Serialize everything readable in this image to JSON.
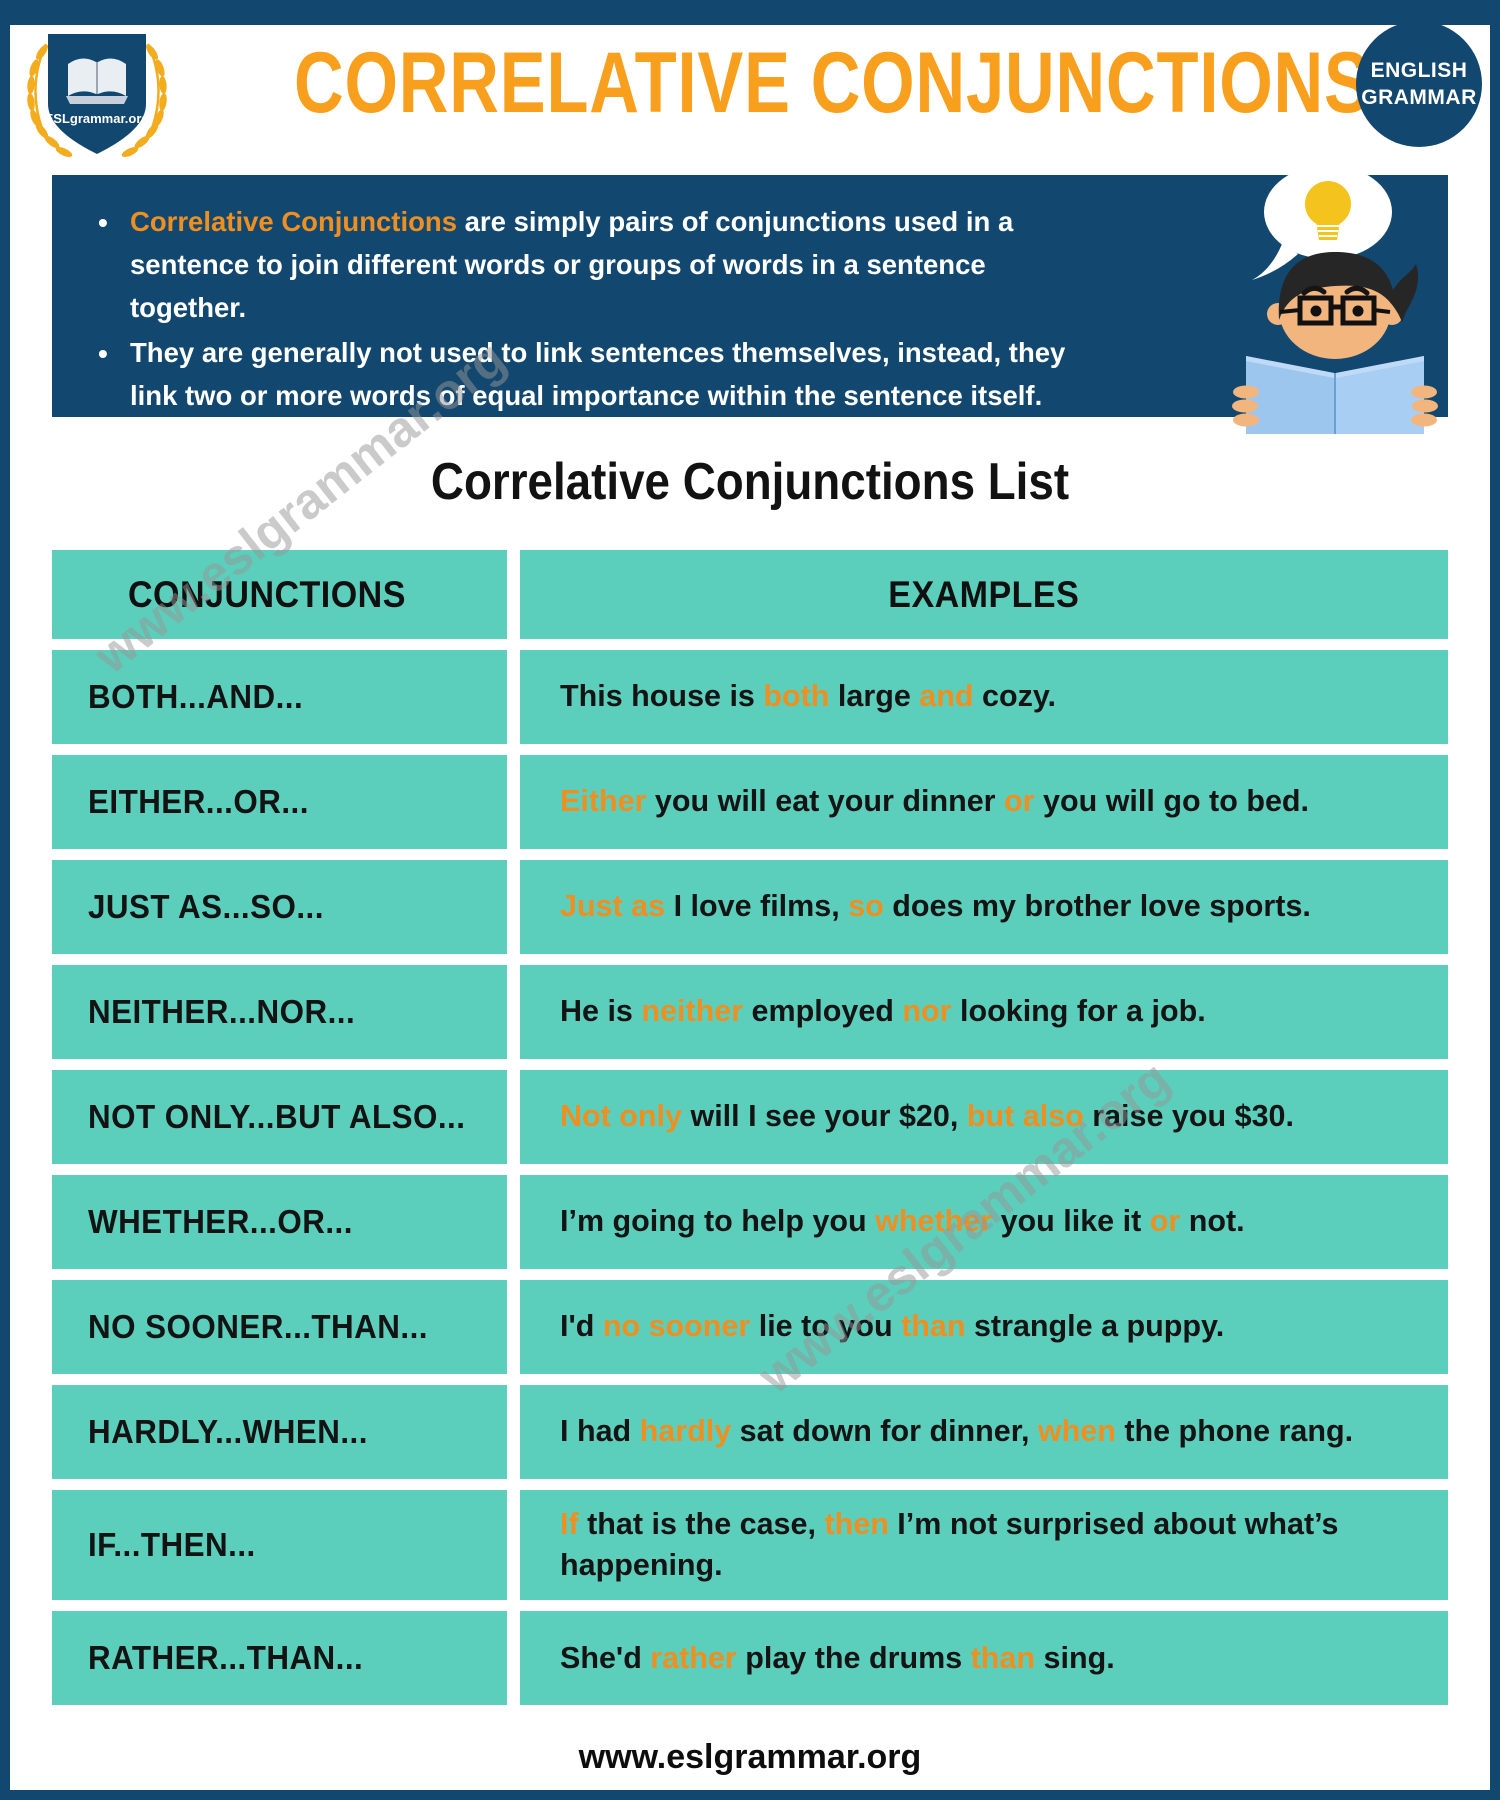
{
  "brand": {
    "logo_text": "ESLgrammar.org",
    "badge": [
      "ENGLISH",
      "GRAMMAR"
    ]
  },
  "header": {
    "title": "CORRELATIVE CONJUNCTIONS"
  },
  "intro": {
    "bullets": [
      {
        "segments": [
          {
            "t": "Correlative Conjunctions",
            "h": true
          },
          {
            "t": " are simply pairs of conjunctions used in a sentence to join different words or groups of words in a sentence together.",
            "h": false
          }
        ]
      },
      {
        "segments": [
          {
            "t": "They are generally not used to link sentences themselves, instead, they link two or more words of equal importance within the sentence itself.",
            "h": false
          }
        ]
      }
    ]
  },
  "list_title": "Correlative Conjunctions List",
  "table": {
    "headers": [
      "CONJUNCTIONS",
      "EXAMPLES"
    ],
    "rows": [
      {
        "conjunction": "BOTH...AND...",
        "example": [
          {
            "t": "This house is ",
            "h": false
          },
          {
            "t": "both",
            "h": true
          },
          {
            "t": " large ",
            "h": false
          },
          {
            "t": "and",
            "h": true
          },
          {
            "t": " cozy.",
            "h": false
          }
        ]
      },
      {
        "conjunction": "EITHER...OR...",
        "example": [
          {
            "t": "Either",
            "h": true
          },
          {
            "t": " you will eat your dinner ",
            "h": false
          },
          {
            "t": "or",
            "h": true
          },
          {
            "t": " you will go to bed.",
            "h": false
          }
        ]
      },
      {
        "conjunction": "JUST AS...SO...",
        "example": [
          {
            "t": "Just as",
            "h": true
          },
          {
            "t": " I love films, ",
            "h": false
          },
          {
            "t": "so",
            "h": true
          },
          {
            "t": " does my brother love sports.",
            "h": false
          }
        ]
      },
      {
        "conjunction": "NEITHER...NOR...",
        "example": [
          {
            "t": "He is ",
            "h": false
          },
          {
            "t": "neither",
            "h": true
          },
          {
            "t": " employed ",
            "h": false
          },
          {
            "t": "nor",
            "h": true
          },
          {
            "t": " looking for a job.",
            "h": false
          }
        ]
      },
      {
        "conjunction": "NOT ONLY...BUT ALSO...",
        "example": [
          {
            "t": "Not only",
            "h": true
          },
          {
            "t": " will I see your $20, ",
            "h": false
          },
          {
            "t": "but also",
            "h": true
          },
          {
            "t": " raise you $30.",
            "h": false
          }
        ]
      },
      {
        "conjunction": "WHETHER...OR...",
        "example": [
          {
            "t": "I’m going to help you ",
            "h": false
          },
          {
            "t": "whether",
            "h": true
          },
          {
            "t": " you like it ",
            "h": false
          },
          {
            "t": "or",
            "h": true
          },
          {
            "t": " not.",
            "h": false
          }
        ]
      },
      {
        "conjunction": "NO SOONER...THAN...",
        "example": [
          {
            "t": "I'd ",
            "h": false
          },
          {
            "t": "no sooner",
            "h": true
          },
          {
            "t": " lie to you ",
            "h": false
          },
          {
            "t": "than",
            "h": true
          },
          {
            "t": " strangle a puppy.",
            "h": false
          }
        ]
      },
      {
        "conjunction": "HARDLY...WHEN...",
        "example": [
          {
            "t": "I had ",
            "h": false
          },
          {
            "t": "hardly",
            "h": true
          },
          {
            "t": " sat down for dinner, ",
            "h": false
          },
          {
            "t": "when",
            "h": true
          },
          {
            "t": " the phone rang.",
            "h": false
          }
        ]
      },
      {
        "conjunction": "IF...THEN...",
        "example": [
          {
            "t": "If",
            "h": true
          },
          {
            "t": " that is the case, ",
            "h": false
          },
          {
            "t": "then",
            "h": true
          },
          {
            "t": " I’m not surprised about what’s happening.",
            "h": false
          }
        ]
      },
      {
        "conjunction": "RATHER...THAN...",
        "example": [
          {
            "t": "She'd ",
            "h": false
          },
          {
            "t": "rather",
            "h": true
          },
          {
            "t": " play the drums ",
            "h": false
          },
          {
            "t": "than",
            "h": true
          },
          {
            "t": " sing.",
            "h": false
          }
        ]
      }
    ]
  },
  "watermark": "www.eslgrammar.org",
  "footer": "www.eslgrammar.org",
  "colors": {
    "navy": "#12476F",
    "teal": "#5CCFBC",
    "orange": "#EE8F22",
    "title_orange": "#F8A01D",
    "gold": "#F2AC1E",
    "bulb_gold": "#F5C31D"
  }
}
